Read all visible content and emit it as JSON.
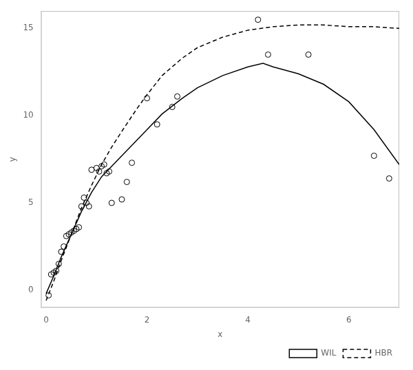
{
  "chart_data": {
    "type": "scatter",
    "xlabel": "x",
    "ylabel": "y",
    "series": [
      {
        "type": "scatter",
        "marker": "circle",
        "color": "black",
        "x": [
          0.05,
          0.1,
          0.15,
          0.2,
          0.25,
          0.3,
          0.35,
          0.4,
          0.45,
          0.5,
          0.55,
          0.6,
          0.65,
          0.7,
          0.75,
          0.8,
          0.85,
          0.9,
          1.0,
          1.05,
          1.1,
          1.15,
          1.2,
          1.25,
          1.3,
          1.5,
          1.6,
          1.7,
          2.0,
          2.2,
          2.5,
          2.6,
          4.2,
          4.4,
          5.2,
          6.5,
          6.8
        ],
        "values": [
          -0.3,
          0.9,
          1.0,
          1.1,
          1.5,
          2.2,
          2.5,
          3.1,
          3.2,
          3.3,
          3.4,
          3.5,
          3.6,
          4.8,
          5.3,
          5.0,
          4.8,
          6.9,
          7.0,
          6.8,
          7.1,
          7.2,
          6.7,
          6.8,
          5.0,
          5.2,
          6.2,
          7.3,
          11.0,
          9.5,
          10.5,
          11.1,
          15.5,
          13.5,
          13.5,
          7.7,
          6.4
        ]
      },
      {
        "name": "WIL",
        "type": "line",
        "line_style": "solid",
        "color": "black",
        "x": [
          0.0,
          0.15,
          0.3,
          0.5,
          0.7,
          0.9,
          1.1,
          1.3,
          1.5,
          1.8,
          2.0,
          2.3,
          2.7,
          3.0,
          3.5,
          4.0,
          4.3,
          4.5,
          5.0,
          5.5,
          6.0,
          6.5,
          7.0
        ],
        "values": [
          -0.2,
          0.8,
          1.9,
          3.2,
          4.5,
          5.6,
          6.5,
          7.1,
          7.7,
          8.6,
          9.2,
          10.1,
          11.0,
          11.6,
          12.3,
          12.8,
          13.0,
          12.8,
          12.4,
          11.8,
          10.8,
          9.2,
          7.2
        ]
      },
      {
        "name": "HBR",
        "type": "line",
        "line_style": "dashed",
        "color": "black",
        "x": [
          0.0,
          0.15,
          0.3,
          0.5,
          0.7,
          0.9,
          1.1,
          1.3,
          1.5,
          1.8,
          2.0,
          2.3,
          2.7,
          3.0,
          3.5,
          4.0,
          4.5,
          5.0,
          5.5,
          6.0,
          6.5,
          7.0
        ],
        "values": [
          -0.6,
          0.5,
          1.7,
          3.2,
          4.7,
          6.0,
          7.2,
          8.2,
          9.1,
          10.4,
          11.2,
          12.3,
          13.3,
          13.9,
          14.5,
          14.9,
          15.1,
          15.2,
          15.2,
          15.1,
          15.1,
          15.0
        ]
      }
    ],
    "xlim": [
      -0.1,
      7.0
    ],
    "ylim": [
      -1.0,
      16.0
    ],
    "xticks": [
      0,
      2,
      4,
      6
    ],
    "yticks": [
      0,
      5,
      10,
      15
    ],
    "grid": false,
    "legend": "lower right"
  }
}
